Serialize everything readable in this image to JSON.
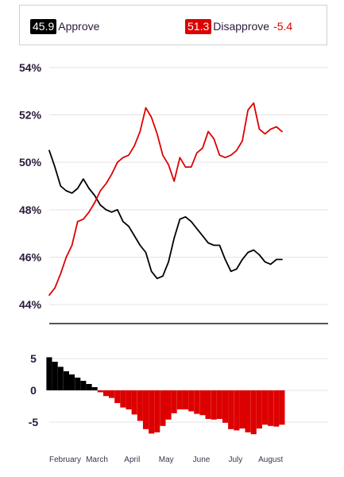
{
  "legend": {
    "approve_value": "45.9",
    "approve_label": "Approve",
    "disapprove_value": "51.3",
    "disapprove_label": "Disapprove",
    "net_label": "-5.4"
  },
  "colors": {
    "approve": "#000000",
    "disapprove": "#dd0000",
    "grid": "#e3e3e3",
    "divider": "#555555"
  },
  "chart_data": [
    {
      "type": "line",
      "title": "",
      "xlabel": "",
      "ylabel": "",
      "ylim": [
        43.5,
        54.5
      ],
      "grid": true,
      "legend": "top",
      "y_ticks": [
        44,
        46,
        48,
        50,
        52,
        54
      ],
      "y_tick_labels": [
        "44%",
        "46%",
        "48%",
        "50%",
        "52%",
        "54%"
      ],
      "x": [
        "02-01",
        "02-06",
        "02-11",
        "02-16",
        "02-21",
        "02-26",
        "03-03",
        "03-08",
        "03-13",
        "03-18",
        "03-23",
        "03-28",
        "04-02",
        "04-07",
        "04-12",
        "04-17",
        "04-22",
        "04-27",
        "05-02",
        "05-07",
        "05-12",
        "05-17",
        "05-22",
        "05-27",
        "06-01",
        "06-06",
        "06-11",
        "06-16",
        "06-21",
        "06-26",
        "07-01",
        "07-06",
        "07-11",
        "07-16",
        "07-21",
        "07-26",
        "07-31",
        "08-05",
        "08-10",
        "08-15",
        "08-20",
        "08-25"
      ],
      "series": [
        {
          "name": "Approve",
          "values": [
            50.5,
            49.8,
            49.0,
            48.8,
            48.7,
            48.9,
            49.3,
            48.9,
            48.6,
            48.2,
            48.0,
            47.9,
            48.0,
            47.5,
            47.3,
            46.9,
            46.5,
            46.2,
            45.4,
            45.1,
            45.2,
            45.8,
            46.8,
            47.6,
            47.7,
            47.5,
            47.2,
            46.9,
            46.6,
            46.5,
            46.5,
            45.9,
            45.4,
            45.5,
            45.9,
            46.2,
            46.3,
            46.1,
            45.8,
            45.7,
            45.9,
            45.9
          ]
        },
        {
          "name": "Disapprove",
          "values": [
            44.4,
            44.7,
            45.3,
            46.0,
            46.5,
            47.5,
            47.6,
            47.9,
            48.3,
            48.8,
            49.1,
            49.5,
            50.0,
            50.2,
            50.3,
            50.7,
            51.3,
            52.3,
            51.9,
            51.2,
            50.3,
            49.9,
            49.2,
            50.2,
            49.8,
            49.8,
            50.4,
            50.6,
            51.3,
            51.0,
            50.3,
            50.2,
            50.3,
            50.5,
            50.9,
            52.2,
            52.5,
            51.4,
            51.2,
            51.4,
            51.5,
            51.3
          ]
        }
      ]
    },
    {
      "type": "bar",
      "title": "",
      "xlabel": "",
      "ylabel": "",
      "ylim": [
        -9,
        7
      ],
      "grid": true,
      "y_ticks": [
        5,
        0,
        -5
      ],
      "y_tick_labels": [
        "5",
        "0",
        "-5"
      ],
      "x_tick_labels": [
        "February",
        "March",
        "April",
        "May",
        "June",
        "July",
        "August"
      ],
      "categories": [
        "02-01",
        "02-06",
        "02-11",
        "02-16",
        "02-21",
        "02-26",
        "03-03",
        "03-08",
        "03-13",
        "03-18",
        "03-23",
        "03-28",
        "04-02",
        "04-07",
        "04-12",
        "04-17",
        "04-22",
        "04-27",
        "05-02",
        "05-07",
        "05-12",
        "05-17",
        "05-22",
        "05-27",
        "06-01",
        "06-06",
        "06-11",
        "06-16",
        "06-21",
        "06-26",
        "07-01",
        "07-06",
        "07-11",
        "07-16",
        "07-21",
        "07-26",
        "07-31",
        "08-05",
        "08-10",
        "08-15",
        "08-20",
        "08-25"
      ],
      "values": [
        5.2,
        4.5,
        3.7,
        3.0,
        2.5,
        2.0,
        1.5,
        1.0,
        0.5,
        -0.3,
        -0.9,
        -1.2,
        -2.0,
        -2.7,
        -3.0,
        -3.8,
        -4.8,
        -6.1,
        -6.8,
        -6.6,
        -5.6,
        -4.6,
        -3.6,
        -3.0,
        -3.0,
        -3.3,
        -3.7,
        -3.9,
        -4.5,
        -4.6,
        -4.5,
        -5.1,
        -6.1,
        -6.3,
        -6.0,
        -6.6,
        -6.9,
        -6.0,
        -5.4,
        -5.6,
        -5.7,
        -5.4
      ]
    }
  ]
}
